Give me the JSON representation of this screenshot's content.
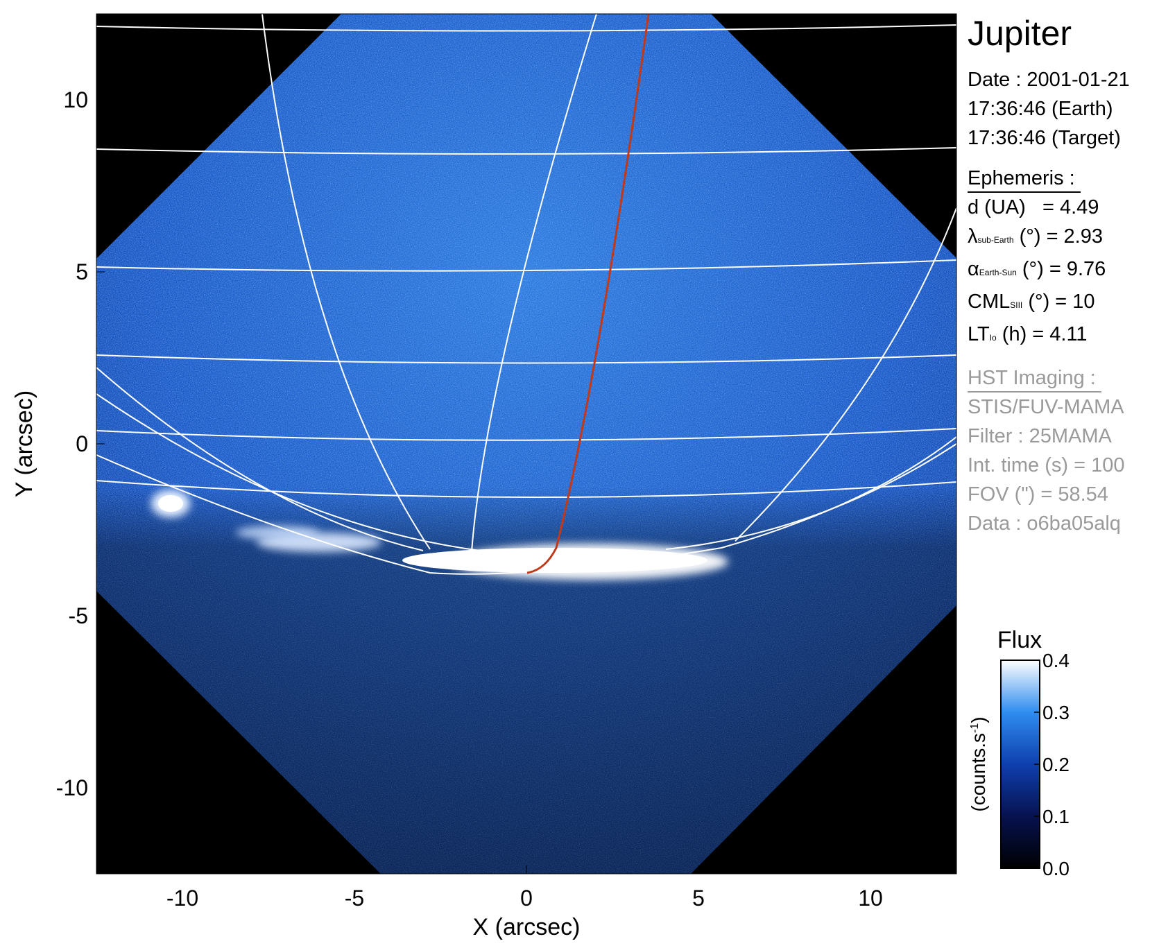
{
  "panel": {
    "planet": "Jupiter",
    "date_line": "Date : 2001-01-21",
    "time_earth": "17:36:46 (Earth)",
    "time_target": "17:36:46 (Target)",
    "ephemeris_heading": "Ephemeris :",
    "d_ua": {
      "label": "d (UA)",
      "value": "= 4.49"
    },
    "lambda": {
      "symbol": "λ",
      "sub": "sub-Earth",
      "rest": "(°) = 2.93"
    },
    "alpha": {
      "symbol": "α",
      "sub": "Earth-Sun",
      "rest": "(°) = 9.76"
    },
    "cml": {
      "symbol": "CML",
      "sub": "SIII",
      "rest": "(°) = 10"
    },
    "lt": {
      "symbol": "LT",
      "sub": "Io",
      "rest": "(h) = 4.11"
    },
    "hst_heading": "HST Imaging :",
    "instrument": "STIS/FUV-MAMA",
    "filter": "Filter : 25MAMA",
    "int_time": "Int. time (s) = 100",
    "fov": "FOV (\") = 58.54",
    "data_id": "Data : o6ba05alq"
  },
  "axes": {
    "xlabel": "X (arcsec)",
    "ylabel": "Y (arcsec)",
    "xlim": [
      -12.5,
      12.5
    ],
    "ylim": [
      -12.5,
      12.5
    ],
    "xticks": [
      "-10",
      "-5",
      "0",
      "5",
      "10"
    ],
    "yticks": [
      "10",
      "5",
      "0",
      "-5",
      "-10"
    ],
    "xtick_values": [
      -10,
      -5,
      0,
      5,
      10
    ],
    "ytick_values": [
      10,
      5,
      0,
      -5,
      -10
    ]
  },
  "colorbar": {
    "title": "Flux",
    "units": "(counts.s-1)",
    "units_base": "(counts.s",
    "units_sup": "-1",
    "units_close": ")",
    "range": [
      0.0,
      0.4
    ],
    "ticks": [
      "0.4",
      "0.3",
      "0.2",
      "0.1",
      "0.0"
    ],
    "tick_values": [
      0.4,
      0.3,
      0.2,
      0.1,
      0.0
    ],
    "colormap": [
      "#000000",
      "#07124f",
      "#0f3fae",
      "#2f8df0",
      "#ffffff"
    ]
  },
  "colors": {
    "background": "#000000",
    "image_blue": "#1559c9",
    "grid": "#ffffff",
    "io_footprint": "#c0391b"
  }
}
